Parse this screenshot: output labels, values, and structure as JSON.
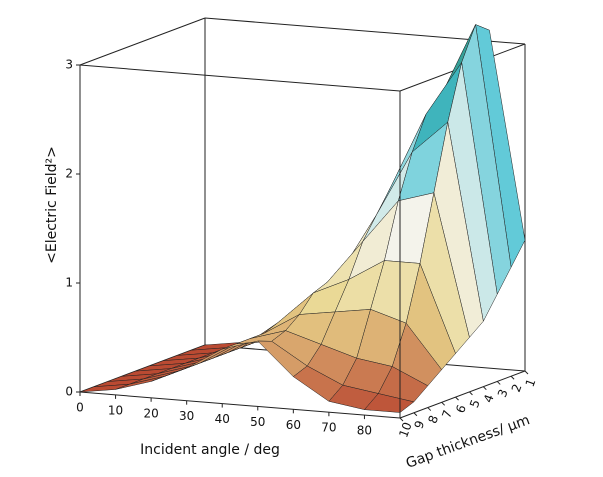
{
  "chart_data": {
    "type": "surface",
    "xlabel": "Incident angle / deg",
    "ylabel": "Gap thickness/ μm",
    "zlabel": "<Electric Field²>",
    "x": [
      0,
      10,
      20,
      30,
      40,
      50,
      60,
      70,
      80,
      90
    ],
    "y": [
      1,
      2,
      3,
      4,
      5,
      6,
      7,
      8,
      9,
      10
    ],
    "z": [
      [
        0,
        0.05,
        0.15,
        0.3,
        0.55,
        0.95,
        1.6,
        2.4,
        3.1,
        1.2
      ],
      [
        0,
        0.05,
        0.15,
        0.3,
        0.55,
        1.0,
        1.7,
        2.5,
        3.2,
        1.0
      ],
      [
        0,
        0.05,
        0.15,
        0.3,
        0.55,
        1.0,
        1.7,
        2.4,
        2.9,
        0.8
      ],
      [
        0,
        0.05,
        0.15,
        0.3,
        0.55,
        0.95,
        1.5,
        2.1,
        2.4,
        0.6
      ],
      [
        0,
        0.05,
        0.15,
        0.3,
        0.55,
        0.9,
        1.3,
        1.7,
        1.8,
        0.5
      ],
      [
        0,
        0.05,
        0.15,
        0.3,
        0.55,
        0.85,
        1.0,
        1.2,
        1.2,
        0.4
      ],
      [
        0,
        0.05,
        0.15,
        0.3,
        0.5,
        0.7,
        0.75,
        0.8,
        0.7,
        0.3
      ],
      [
        0,
        0.05,
        0.15,
        0.3,
        0.5,
        0.6,
        0.5,
        0.4,
        0.35,
        0.2
      ],
      [
        0,
        0.05,
        0.15,
        0.3,
        0.5,
        0.55,
        0.35,
        0.2,
        0.15,
        0.1
      ],
      [
        0,
        0.05,
        0.15,
        0.3,
        0.5,
        0.6,
        0.3,
        0.1,
        0.05,
        0.05
      ]
    ],
    "xlim": [
      0,
      90
    ],
    "xticks": [
      0,
      10,
      20,
      30,
      40,
      50,
      60,
      70,
      80
    ],
    "ylim": [
      10,
      1
    ],
    "yticks": [
      10,
      9,
      8,
      7,
      6,
      5,
      4,
      3,
      2,
      1
    ],
    "zlim": [
      0,
      3
    ],
    "zticks": [
      0,
      1,
      2,
      3
    ],
    "colormap": [
      "#b8452f",
      "#e9d68c",
      "#f4f4ee",
      "#45c2d4",
      "#2f8f7a"
    ]
  }
}
